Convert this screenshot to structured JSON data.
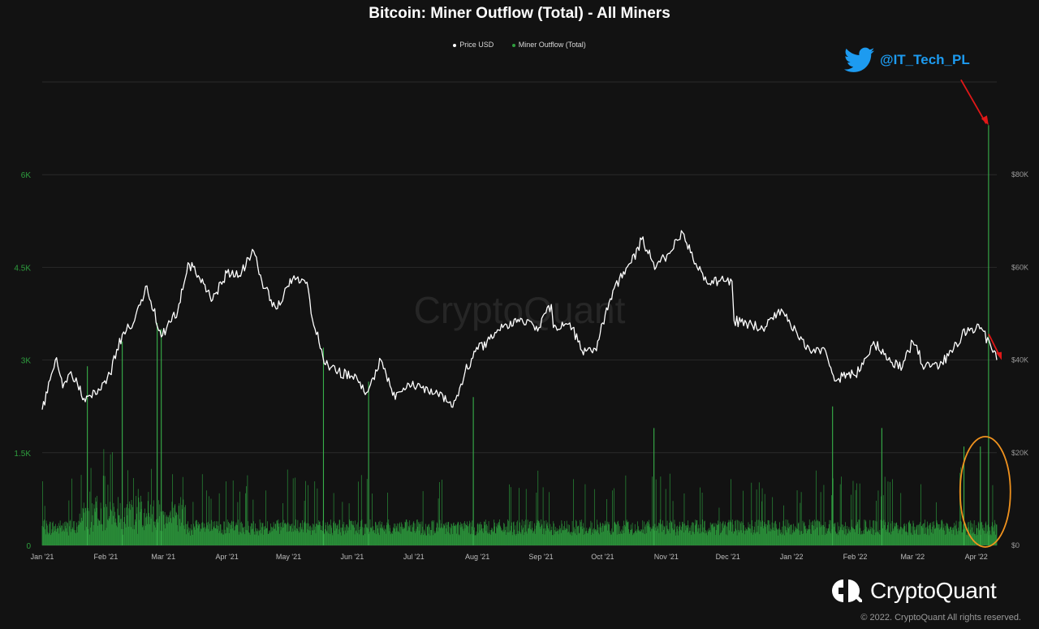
{
  "title": "Bitcoin: Miner Outflow (Total) - All Miners",
  "legend": [
    {
      "label": "Price USD",
      "color": "#ffffff"
    },
    {
      "label": "Miner Outflow (Total)",
      "color": "#2e9e3e"
    }
  ],
  "watermark": "CryptoQuant",
  "twitter_handle": "@IT_Tech_PL",
  "brand": {
    "name": "CryptoQuant",
    "copyright": "© 2022. CryptoQuant All rights reserved."
  },
  "colors": {
    "background": "#121212",
    "outflow": "#2e9e3e",
    "price": "#ffffff",
    "annotation_arrow": "#e01818",
    "highlight_ellipse": "#f0921e",
    "twitter": "#1d9bf0"
  },
  "chart_data": {
    "type": "bar+line",
    "title": "Bitcoin: Miner Outflow (Total) - All Miners",
    "x_range": [
      "2021-01-01",
      "2022-04-11"
    ],
    "x_ticks": [
      "Jan '21",
      "Feb '21",
      "Mar '21",
      "Apr '21",
      "May '21",
      "Jun '21",
      "Jul '21",
      "Aug '21",
      "Sep '21",
      "Oct '21",
      "Nov '21",
      "Dec '21",
      "Jan '22",
      "Feb '22",
      "Mar '22",
      "Apr '22"
    ],
    "y_left": {
      "ticks": [
        "0",
        "1.5K",
        "3K",
        "4.5K",
        "6K"
      ],
      "values": [
        0,
        1500,
        3000,
        4500,
        6000
      ],
      "range": [
        0,
        7500
      ],
      "unit": "BTC"
    },
    "y_right": {
      "ticks": [
        "$0",
        "$20K",
        "$40K",
        "$60K",
        "$80K"
      ],
      "values": [
        0,
        20000,
        40000,
        60000,
        80000
      ],
      "range": [
        0,
        100000
      ],
      "unit": "USD"
    },
    "grid": true,
    "legend_position": "top-center",
    "series": [
      {
        "name": "Price USD",
        "axis": "right",
        "type": "line",
        "x": [
          "2021-01-01",
          "2021-01-08",
          "2021-01-11",
          "2021-01-15",
          "2021-01-22",
          "2021-01-29",
          "2021-02-03",
          "2021-02-09",
          "2021-02-15",
          "2021-02-21",
          "2021-02-28",
          "2021-03-08",
          "2021-03-13",
          "2021-03-20",
          "2021-03-25",
          "2021-04-01",
          "2021-04-07",
          "2021-04-14",
          "2021-04-18",
          "2021-04-25",
          "2021-05-03",
          "2021-05-10",
          "2021-05-12",
          "2021-05-19",
          "2021-05-24",
          "2021-06-01",
          "2021-06-08",
          "2021-06-15",
          "2021-06-22",
          "2021-06-28",
          "2021-07-05",
          "2021-07-12",
          "2021-07-20",
          "2021-07-26",
          "2021-07-31",
          "2021-08-07",
          "2021-08-14",
          "2021-08-22",
          "2021-08-31",
          "2021-09-06",
          "2021-09-07",
          "2021-09-15",
          "2021-09-21",
          "2021-09-28",
          "2021-10-01",
          "2021-10-06",
          "2021-10-15",
          "2021-10-20",
          "2021-10-27",
          "2021-11-02",
          "2021-11-09",
          "2021-11-16",
          "2021-11-22",
          "2021-11-27",
          "2021-12-03",
          "2021-12-04",
          "2021-12-10",
          "2021-12-18",
          "2021-12-27",
          "2022-01-03",
          "2022-01-10",
          "2022-01-17",
          "2022-01-22",
          "2022-01-26",
          "2022-02-03",
          "2022-02-10",
          "2022-02-17",
          "2022-02-24",
          "2022-03-01",
          "2022-03-07",
          "2022-03-14",
          "2022-03-21",
          "2022-03-28",
          "2022-04-04",
          "2022-04-11"
        ],
        "values": [
          29300,
          40500,
          34000,
          37500,
          31000,
          33500,
          37000,
          45500,
          48500,
          56000,
          45000,
          50500,
          61000,
          57500,
          53000,
          58800,
          58200,
          63500,
          57000,
          51000,
          57500,
          56800,
          50000,
          39000,
          37500,
          36500,
          33000,
          40000,
          31500,
          35000,
          34000,
          33500,
          29800,
          37500,
          41800,
          44500,
          47500,
          49000,
          47000,
          52000,
          47000,
          48000,
          42000,
          42000,
          48000,
          55000,
          61000,
          66000,
          60000,
          63000,
          67500,
          60000,
          56500,
          57000,
          57000,
          48500,
          48000,
          46800,
          51000,
          46500,
          42000,
          42500,
          35500,
          36500,
          37500,
          44000,
          40000,
          38500,
          44000,
          38500,
          38500,
          42500,
          47000,
          46500,
          40000
        ]
      },
      {
        "name": "Miner Outflow (Total)",
        "axis": "left",
        "type": "bar",
        "notable_peaks": [
          {
            "date": "2022-04-07",
            "value": 6800
          },
          {
            "date": "2021-02-26",
            "value": 3600
          },
          {
            "date": "2021-02-28",
            "value": 3500
          },
          {
            "date": "2021-02-09",
            "value": 3300
          },
          {
            "date": "2021-05-18",
            "value": 3200
          },
          {
            "date": "2021-01-23",
            "value": 2900
          },
          {
            "date": "2021-06-09",
            "value": 2650
          },
          {
            "date": "2021-07-30",
            "value": 2400
          },
          {
            "date": "2022-01-21",
            "value": 2250
          },
          {
            "date": "2022-02-14",
            "value": 1900
          },
          {
            "date": "2021-10-26",
            "value": 1900
          },
          {
            "date": "2022-03-26",
            "value": 1600
          },
          {
            "date": "2022-04-03",
            "value": 1600
          }
        ]
      }
    ],
    "annotations": [
      {
        "type": "arrow",
        "color": "red",
        "points_to": "Miner Outflow spike 2022-04-07"
      },
      {
        "type": "arrow",
        "color": "red",
        "points_to": "Price decline 2022-04-11"
      },
      {
        "type": "ellipse",
        "color": "orange",
        "highlights": "late Mar - Apr 2022 outflows"
      }
    ]
  }
}
